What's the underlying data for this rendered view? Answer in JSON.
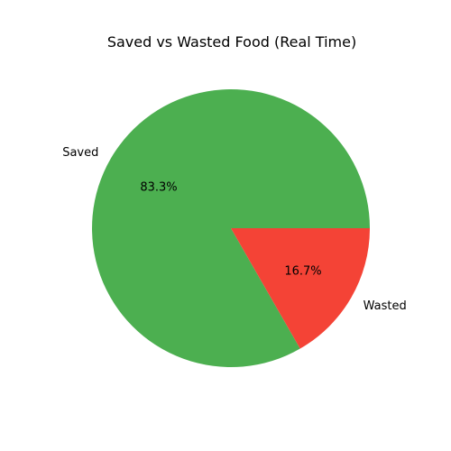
{
  "chart_data": {
    "type": "pie",
    "title": "Saved vs Wasted Food (Real Time)",
    "slices": [
      {
        "label": "Saved",
        "value": 83.3,
        "pct_label": "83.3%",
        "color": "#4caf50"
      },
      {
        "label": "Wasted",
        "value": 16.7,
        "pct_label": "16.7%",
        "color": "#f44336"
      }
    ],
    "start_angle_deg": 0,
    "direction": "counterclockwise",
    "legend": "none"
  }
}
